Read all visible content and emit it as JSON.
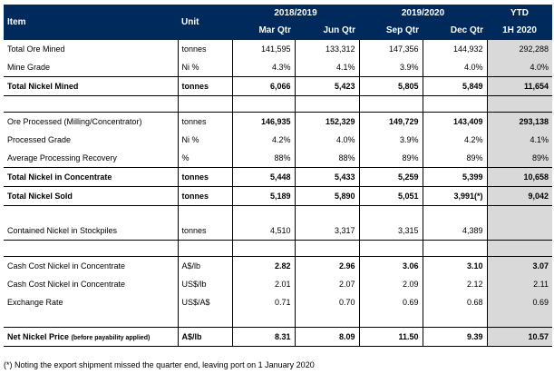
{
  "header": {
    "item": "Item",
    "unit": "Unit",
    "group1": "2018/2019",
    "group2": "2019/2020",
    "ytd_line1": "YTD",
    "q1": "Mar Qtr",
    "q2": "Jun Qtr",
    "q3": "Sep Qtr",
    "q4": "Dec Qtr",
    "ytd_line2": "1H 2020"
  },
  "rows": [
    {
      "label": "Total Ore Mined",
      "unit": "tonnes",
      "q1": "141,595",
      "q2": "133,312",
      "q3": "147,356",
      "q4": "144,932",
      "ytd": "292,288"
    },
    {
      "label": "Mine Grade",
      "unit": "Ni %",
      "q1": "4.3%",
      "q2": "4.1%",
      "q3": "3.9%",
      "q4": "4.0%",
      "ytd": "4.0%"
    },
    {
      "label": "Total Nickel Mined",
      "unit": "tonnes",
      "q1": "6,066",
      "q2": "5,423",
      "q3": "5,805",
      "q4": "5,849",
      "ytd": "11,654"
    },
    {
      "label": "Ore Processed (Milling/Concentrator)",
      "unit": "tonnes",
      "q1": "146,935",
      "q2": "152,329",
      "q3": "149,729",
      "q4": "143,409",
      "ytd": "293,138"
    },
    {
      "label": "Processed Grade",
      "unit": "Ni %",
      "q1": "4.2%",
      "q2": "4.0%",
      "q3": "3.9%",
      "q4": "4.2%",
      "ytd": "4.1%"
    },
    {
      "label": "Average Processing Recovery",
      "unit": "%",
      "q1": "88%",
      "q2": "88%",
      "q3": "89%",
      "q4": "89%",
      "ytd": "89%"
    },
    {
      "label": "Total Nickel in Concentrate",
      "unit": "tonnes",
      "q1": "5,448",
      "q2": "5,433",
      "q3": "5,259",
      "q4": "5,399",
      "ytd": "10,658"
    },
    {
      "label": "Total Nickel Sold",
      "unit": "tonnes",
      "q1": "5,189",
      "q2": "5,890",
      "q3": "5,051",
      "q4": "3,991(*)",
      "ytd": "9,042"
    },
    {
      "label": "Contained Nickel in Stockpiles",
      "unit": "tonnes",
      "q1": "4,510",
      "q2": "3,317",
      "q3": "3,315",
      "q4": "4,389",
      "ytd": ""
    },
    {
      "label": "Cash Cost Nickel in Concentrate",
      "unit": "A$/lb",
      "q1": "2.82",
      "q2": "2.96",
      "q3": "3.06",
      "q4": "3.10",
      "ytd": "3.07"
    },
    {
      "label": "Cash Cost Nickel in Concentrate",
      "unit": "US$/lb",
      "q1": "2.01",
      "q2": "2.07",
      "q3": "2.09",
      "q4": "2.12",
      "ytd": "2.11"
    },
    {
      "label": "Exchange Rate",
      "unit": "US$/A$",
      "q1": "0.71",
      "q2": "0.70",
      "q3": "0.69",
      "q4": "0.68",
      "ytd": "0.69"
    },
    {
      "label": "Net Nickel Price",
      "label_note": "(before payability applied)",
      "unit": "A$/lb",
      "q1": "8.31",
      "q2": "8.09",
      "q3": "11.50",
      "q4": "9.39",
      "ytd": "10.57"
    }
  ],
  "footnote": "(*) Noting the export shipment missed the quarter end, leaving port on 1 January 2020"
}
